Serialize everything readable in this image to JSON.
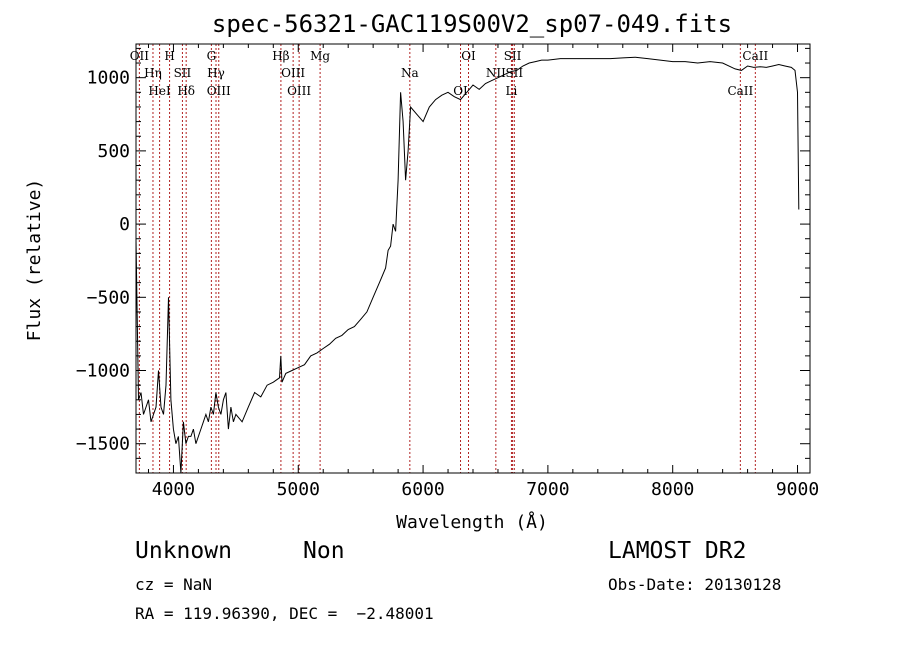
{
  "chart_data": {
    "type": "line",
    "title": "spec-56321-GAC119S00V2_sp07-049.fits",
    "xlabel": "Wavelength (Å)",
    "ylabel": "Flux (relative)",
    "xlim": [
      3700,
      9100
    ],
    "ylim": [
      -1700,
      1230
    ],
    "xticks": [
      "4000",
      "5000",
      "6000",
      "7000",
      "8000",
      "9000"
    ],
    "yticks": [
      "−1500",
      "−1000",
      "−500",
      "0",
      "500",
      "1000"
    ],
    "grid": false,
    "series": [
      {
        "color": "#000000",
        "x": [
          3700,
          3720,
          3740,
          3760,
          3780,
          3800,
          3820,
          3840,
          3860,
          3880,
          3900,
          3920,
          3940,
          3960,
          3980,
          4000,
          4020,
          4040,
          4060,
          4080,
          4100,
          4120,
          4140,
          4160,
          4180,
          4200,
          4220,
          4240,
          4260,
          4280,
          4300,
          4320,
          4340,
          4360,
          4380,
          4400,
          4420,
          4440,
          4460,
          4480,
          4500,
          4550,
          4600,
          4650,
          4700,
          4750,
          4800,
          4850,
          4860,
          4870,
          4900,
          4950,
          5000,
          5050,
          5100,
          5150,
          5200,
          5250,
          5300,
          5350,
          5400,
          5450,
          5500,
          5550,
          5600,
          5650,
          5700,
          5720,
          5740,
          5760,
          5780,
          5800,
          5820,
          5840,
          5860,
          5880,
          5900,
          5950,
          6000,
          6050,
          6100,
          6150,
          6200,
          6250,
          6300,
          6350,
          6400,
          6450,
          6500,
          6550,
          6600,
          6650,
          6700,
          6750,
          6800,
          6850,
          6900,
          6950,
          7000,
          7100,
          7200,
          7300,
          7400,
          7500,
          7600,
          7700,
          7800,
          7900,
          8000,
          8100,
          8200,
          8300,
          8400,
          8500,
          8550,
          8600,
          8650,
          8700,
          8750,
          8800,
          8850,
          8900,
          8950,
          8980,
          9000,
          9010
        ],
        "y": [
          -100,
          -1200,
          -1150,
          -1300,
          -1250,
          -1200,
          -1350,
          -1300,
          -1250,
          -1000,
          -1250,
          -1300,
          -1100,
          -500,
          -1200,
          -1400,
          -1500,
          -1450,
          -1700,
          -1350,
          -1500,
          -1450,
          -1450,
          -1400,
          -1500,
          -1450,
          -1400,
          -1350,
          -1300,
          -1350,
          -1250,
          -1300,
          -1150,
          -1250,
          -1300,
          -1200,
          -1150,
          -1400,
          -1250,
          -1350,
          -1300,
          -1350,
          -1250,
          -1150,
          -1180,
          -1100,
          -1080,
          -1050,
          -900,
          -1080,
          -1020,
          -1000,
          -980,
          -960,
          -900,
          -880,
          -850,
          -820,
          -780,
          -760,
          -720,
          -700,
          -650,
          -600,
          -500,
          -400,
          -300,
          -180,
          -150,
          0,
          -50,
          300,
          900,
          700,
          300,
          500,
          800,
          750,
          700,
          800,
          850,
          880,
          900,
          870,
          850,
          900,
          950,
          920,
          960,
          980,
          1000,
          1020,
          1040,
          1050,
          1080,
          1100,
          1110,
          1120,
          1120,
          1130,
          1130,
          1130,
          1130,
          1130,
          1135,
          1140,
          1130,
          1120,
          1110,
          1110,
          1100,
          1110,
          1100,
          1060,
          1050,
          1080,
          1070,
          1075,
          1070,
          1080,
          1090,
          1080,
          1070,
          1050,
          900,
          100
        ]
      }
    ],
    "annotations": [
      {
        "label": "OII",
        "x": 3727
      },
      {
        "label": "Hη",
        "x": 3836
      },
      {
        "label": "HeI",
        "x": 3889
      },
      {
        "label": "H",
        "x": 3969
      },
      {
        "label": "SII",
        "x": 4072
      },
      {
        "label": "Hδ",
        "x": 4102
      },
      {
        "label": "G",
        "x": 4304
      },
      {
        "label": "Hγ",
        "x": 4341
      },
      {
        "label": "OIII",
        "x": 4363
      },
      {
        "label": "Hβ",
        "x": 4861
      },
      {
        "label": "OIII",
        "x": 4959
      },
      {
        "label": "OIII",
        "x": 5007
      },
      {
        "label": "Mg",
        "x": 5175
      },
      {
        "label": "Na",
        "x": 5894
      },
      {
        "label": "OI",
        "x": 6300
      },
      {
        "label": "OI",
        "x": 6364
      },
      {
        "label": "NII",
        "x": 6583
      },
      {
        "label": "Li",
        "x": 6708
      },
      {
        "label": "SII",
        "x": 6717
      },
      {
        "label": "SII",
        "x": 6731
      },
      {
        "label": "CaII",
        "x": 8542
      },
      {
        "label": "CaII",
        "x": 8662
      }
    ]
  },
  "info": {
    "object_class": "Unknown",
    "object_subclass": "Non",
    "cz": "cz = NaN",
    "coords": "RA = 119.96390, DEC =  −2.48001",
    "survey": "LAMOST DR2",
    "obs_date": "Obs-Date: 20130128"
  }
}
